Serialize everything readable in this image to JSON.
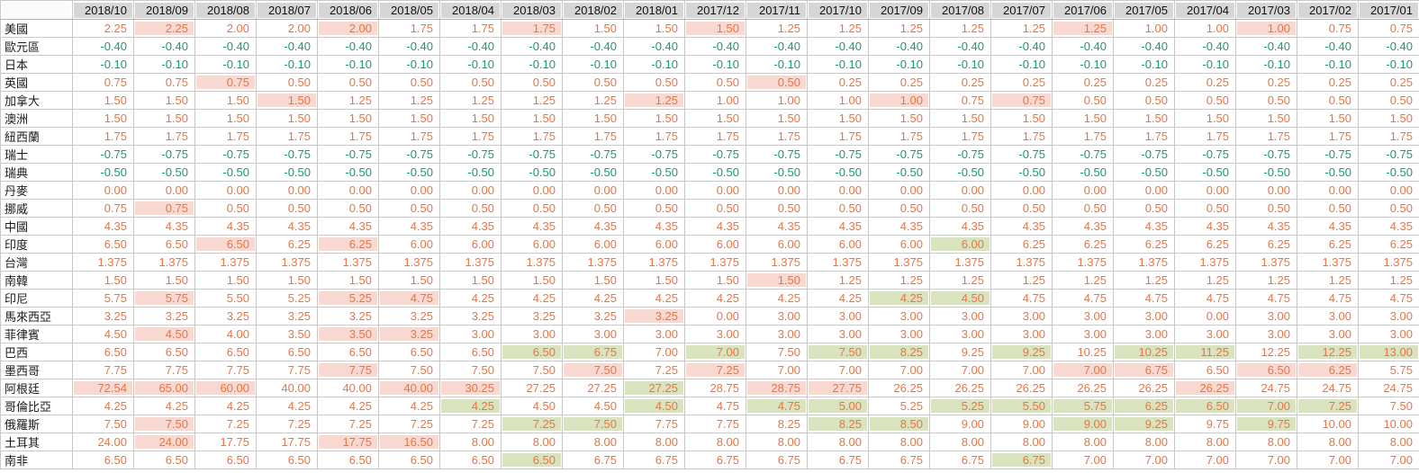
{
  "colors": {
    "positive_text": "#f4713c",
    "negative_text": "#149c6b",
    "hike_highlight_bg": "#f7d9d2",
    "cut_highlight_bg": "#d9e3bf",
    "header_bg": "#d6d6d6",
    "grid_line": "#c9c9c9"
  },
  "chart_data": {
    "type": "table",
    "title": "",
    "corner_label": "",
    "legend_note": "hl string per row: p = pink highlighted cell, g = green highlighted cell, . = plain",
    "columns": [
      "2018/10",
      "2018/09",
      "2018/08",
      "2018/07",
      "2018/06",
      "2018/05",
      "2018/04",
      "2018/03",
      "2018/02",
      "2018/01",
      "2017/12",
      "2017/11",
      "2017/10",
      "2017/09",
      "2017/08",
      "2017/07",
      "2017/06",
      "2017/05",
      "2017/04",
      "2017/03",
      "2017/02",
      "2017/01"
    ],
    "rows": [
      {
        "label": "美國",
        "values": [
          "2.25",
          "2.25",
          "2.00",
          "2.00",
          "2.00",
          "1.75",
          "1.75",
          "1.75",
          "1.50",
          "1.50",
          "1.50",
          "1.25",
          "1.25",
          "1.25",
          "1.25",
          "1.25",
          "1.25",
          "1.00",
          "1.00",
          "1.00",
          "0.75",
          "0.75"
        ],
        "hl": ".p..p..p..p.....p..p.."
      },
      {
        "label": "歐元區",
        "values": [
          "-0.40",
          "-0.40",
          "-0.40",
          "-0.40",
          "-0.40",
          "-0.40",
          "-0.40",
          "-0.40",
          "-0.40",
          "-0.40",
          "-0.40",
          "-0.40",
          "-0.40",
          "-0.40",
          "-0.40",
          "-0.40",
          "-0.40",
          "-0.40",
          "-0.40",
          "-0.40",
          "-0.40",
          "-0.40"
        ],
        "hl": "......................"
      },
      {
        "label": "日本",
        "values": [
          "-0.10",
          "-0.10",
          "-0.10",
          "-0.10",
          "-0.10",
          "-0.10",
          "-0.10",
          "-0.10",
          "-0.10",
          "-0.10",
          "-0.10",
          "-0.10",
          "-0.10",
          "-0.10",
          "-0.10",
          "-0.10",
          "-0.10",
          "-0.10",
          "-0.10",
          "-0.10",
          "-0.10",
          "-0.10"
        ],
        "hl": "......................"
      },
      {
        "label": "英國",
        "values": [
          "0.75",
          "0.75",
          "0.75",
          "0.50",
          "0.50",
          "0.50",
          "0.50",
          "0.50",
          "0.50",
          "0.50",
          "0.50",
          "0.50",
          "0.25",
          "0.25",
          "0.25",
          "0.25",
          "0.25",
          "0.25",
          "0.25",
          "0.25",
          "0.25",
          "0.25"
        ],
        "hl": "..p........p.........."
      },
      {
        "label": "加拿大",
        "values": [
          "1.50",
          "1.50",
          "1.50",
          "1.50",
          "1.25",
          "1.25",
          "1.25",
          "1.25",
          "1.25",
          "1.25",
          "1.00",
          "1.00",
          "1.00",
          "1.00",
          "0.75",
          "0.75",
          "0.50",
          "0.50",
          "0.50",
          "0.50",
          "0.50",
          "0.50"
        ],
        "hl": "...p.....p...p.p......"
      },
      {
        "label": "澳洲",
        "values": [
          "1.50",
          "1.50",
          "1.50",
          "1.50",
          "1.50",
          "1.50",
          "1.50",
          "1.50",
          "1.50",
          "1.50",
          "1.50",
          "1.50",
          "1.50",
          "1.50",
          "1.50",
          "1.50",
          "1.50",
          "1.50",
          "1.50",
          "1.50",
          "1.50",
          "1.50"
        ],
        "hl": "......................"
      },
      {
        "label": "紐西蘭",
        "values": [
          "1.75",
          "1.75",
          "1.75",
          "1.75",
          "1.75",
          "1.75",
          "1.75",
          "1.75",
          "1.75",
          "1.75",
          "1.75",
          "1.75",
          "1.75",
          "1.75",
          "1.75",
          "1.75",
          "1.75",
          "1.75",
          "1.75",
          "1.75",
          "1.75",
          "1.75"
        ],
        "hl": "......................"
      },
      {
        "label": "瑞士",
        "values": [
          "-0.75",
          "-0.75",
          "-0.75",
          "-0.75",
          "-0.75",
          "-0.75",
          "-0.75",
          "-0.75",
          "-0.75",
          "-0.75",
          "-0.75",
          "-0.75",
          "-0.75",
          "-0.75",
          "-0.75",
          "-0.75",
          "-0.75",
          "-0.75",
          "-0.75",
          "-0.75",
          "-0.75",
          "-0.75"
        ],
        "hl": "......................"
      },
      {
        "label": "瑞典",
        "values": [
          "-0.50",
          "-0.50",
          "-0.50",
          "-0.50",
          "-0.50",
          "-0.50",
          "-0.50",
          "-0.50",
          "-0.50",
          "-0.50",
          "-0.50",
          "-0.50",
          "-0.50",
          "-0.50",
          "-0.50",
          "-0.50",
          "-0.50",
          "-0.50",
          "-0.50",
          "-0.50",
          "-0.50",
          "-0.50"
        ],
        "hl": "......................"
      },
      {
        "label": "丹麥",
        "values": [
          "0.00",
          "0.00",
          "0.00",
          "0.00",
          "0.00",
          "0.00",
          "0.00",
          "0.00",
          "0.00",
          "0.00",
          "0.00",
          "0.00",
          "0.00",
          "0.00",
          "0.00",
          "0.00",
          "0.00",
          "0.00",
          "0.00",
          "0.00",
          "0.00",
          "0.00"
        ],
        "hl": "......................"
      },
      {
        "label": "挪威",
        "values": [
          "0.75",
          "0.75",
          "0.50",
          "0.50",
          "0.50",
          "0.50",
          "0.50",
          "0.50",
          "0.50",
          "0.50",
          "0.50",
          "0.50",
          "0.50",
          "0.50",
          "0.50",
          "0.50",
          "0.50",
          "0.50",
          "0.50",
          "0.50",
          "0.50",
          "0.50"
        ],
        "hl": ".p...................."
      },
      {
        "label": "中國",
        "values": [
          "4.35",
          "4.35",
          "4.35",
          "4.35",
          "4.35",
          "4.35",
          "4.35",
          "4.35",
          "4.35",
          "4.35",
          "4.35",
          "4.35",
          "4.35",
          "4.35",
          "4.35",
          "4.35",
          "4.35",
          "4.35",
          "4.35",
          "4.35",
          "4.35",
          "4.35"
        ],
        "hl": "......................"
      },
      {
        "label": "印度",
        "values": [
          "6.50",
          "6.50",
          "6.50",
          "6.25",
          "6.25",
          "6.00",
          "6.00",
          "6.00",
          "6.00",
          "6.00",
          "6.00",
          "6.00",
          "6.00",
          "6.00",
          "6.00",
          "6.25",
          "6.25",
          "6.25",
          "6.25",
          "6.25",
          "6.25",
          "6.25"
        ],
        "hl": "..p.p.........g......."
      },
      {
        "label": "台灣",
        "values": [
          "1.375",
          "1.375",
          "1.375",
          "1.375",
          "1.375",
          "1.375",
          "1.375",
          "1.375",
          "1.375",
          "1.375",
          "1.375",
          "1.375",
          "1.375",
          "1.375",
          "1.375",
          "1.375",
          "1.375",
          "1.375",
          "1.375",
          "1.375",
          "1.375",
          "1.375"
        ],
        "hl": "......................"
      },
      {
        "label": "南韓",
        "values": [
          "1.50",
          "1.50",
          "1.50",
          "1.50",
          "1.50",
          "1.50",
          "1.50",
          "1.50",
          "1.50",
          "1.50",
          "1.50",
          "1.50",
          "1.25",
          "1.25",
          "1.25",
          "1.25",
          "1.25",
          "1.25",
          "1.25",
          "1.25",
          "1.25",
          "1.25"
        ],
        "hl": "...........p.........."
      },
      {
        "label": "印尼",
        "values": [
          "5.75",
          "5.75",
          "5.50",
          "5.25",
          "5.25",
          "4.75",
          "4.25",
          "4.25",
          "4.25",
          "4.25",
          "4.25",
          "4.25",
          "4.25",
          "4.25",
          "4.50",
          "4.75",
          "4.75",
          "4.75",
          "4.75",
          "4.75",
          "4.75",
          "4.75"
        ],
        "hl": ".p..pp.......gg......."
      },
      {
        "label": "馬來西亞",
        "values": [
          "3.25",
          "3.25",
          "3.25",
          "3.25",
          "3.25",
          "3.25",
          "3.25",
          "3.25",
          "3.25",
          "3.25",
          "0.00",
          "3.00",
          "3.00",
          "3.00",
          "3.00",
          "3.00",
          "3.00",
          "3.00",
          "0.00",
          "3.00",
          "3.00",
          "3.00"
        ],
        "hl": ".........p............"
      },
      {
        "label": "菲律賓",
        "values": [
          "4.50",
          "4.50",
          "4.00",
          "3.50",
          "3.50",
          "3.25",
          "3.00",
          "3.00",
          "3.00",
          "3.00",
          "3.00",
          "3.00",
          "3.00",
          "3.00",
          "3.00",
          "3.00",
          "3.00",
          "3.00",
          "3.00",
          "3.00",
          "3.00",
          "3.00"
        ],
        "hl": ".p..pp................"
      },
      {
        "label": "巴西",
        "values": [
          "6.50",
          "6.50",
          "6.50",
          "6.50",
          "6.50",
          "6.50",
          "6.50",
          "6.50",
          "6.75",
          "7.00",
          "7.00",
          "7.50",
          "7.50",
          "8.25",
          "9.25",
          "9.25",
          "10.25",
          "10.25",
          "11.25",
          "12.25",
          "12.25",
          "13.00"
        ],
        "hl": ".......gg.g.gg.g.gg.gg"
      },
      {
        "label": "墨西哥",
        "values": [
          "7.75",
          "7.75",
          "7.75",
          "7.75",
          "7.75",
          "7.50",
          "7.50",
          "7.50",
          "7.50",
          "7.25",
          "7.25",
          "7.00",
          "7.00",
          "7.00",
          "7.00",
          "7.00",
          "7.00",
          "6.75",
          "6.50",
          "6.50",
          "6.25",
          "5.75"
        ],
        "hl": "....p...p.p.....pp.pp."
      },
      {
        "label": "阿根廷",
        "values": [
          "72.54",
          "65.00",
          "60.00",
          "40.00",
          "40.00",
          "40.00",
          "30.25",
          "27.25",
          "27.25",
          "27.25",
          "28.75",
          "28.75",
          "27.75",
          "26.25",
          "26.25",
          "26.25",
          "26.25",
          "26.25",
          "26.25",
          "24.75",
          "24.75",
          "24.75"
        ],
        "hl": "ppp..pp..g.pp.....p..."
      },
      {
        "label": "哥倫比亞",
        "values": [
          "4.25",
          "4.25",
          "4.25",
          "4.25",
          "4.25",
          "4.25",
          "4.25",
          "4.50",
          "4.50",
          "4.50",
          "4.75",
          "4.75",
          "5.00",
          "5.25",
          "5.25",
          "5.50",
          "5.75",
          "6.25",
          "6.50",
          "7.00",
          "7.25",
          "7.50"
        ],
        "hl": "......g..g.gg.ggggggg."
      },
      {
        "label": "俄羅斯",
        "values": [
          "7.50",
          "7.50",
          "7.25",
          "7.25",
          "7.25",
          "7.25",
          "7.25",
          "7.25",
          "7.50",
          "7.75",
          "7.75",
          "8.25",
          "8.25",
          "8.50",
          "9.00",
          "9.00",
          "9.00",
          "9.25",
          "9.75",
          "9.75",
          "10.00",
          "10.00"
        ],
        "hl": ".p.....gg...gg..gg.g.."
      },
      {
        "label": "土耳其",
        "values": [
          "24.00",
          "24.00",
          "17.75",
          "17.75",
          "17.75",
          "16.50",
          "8.00",
          "8.00",
          "8.00",
          "8.00",
          "8.00",
          "8.00",
          "8.00",
          "8.00",
          "8.00",
          "8.00",
          "8.00",
          "8.00",
          "8.00",
          "8.00",
          "8.00",
          "8.00"
        ],
        "hl": ".p..pp................"
      },
      {
        "label": "南非",
        "values": [
          "6.50",
          "6.50",
          "6.50",
          "6.50",
          "6.50",
          "6.50",
          "6.50",
          "6.50",
          "6.75",
          "6.75",
          "6.75",
          "6.75",
          "6.75",
          "6.75",
          "6.75",
          "6.75",
          "7.00",
          "7.00",
          "7.00",
          "7.00",
          "7.00",
          "7.00"
        ],
        "hl": ".......g.......g......"
      }
    ]
  }
}
